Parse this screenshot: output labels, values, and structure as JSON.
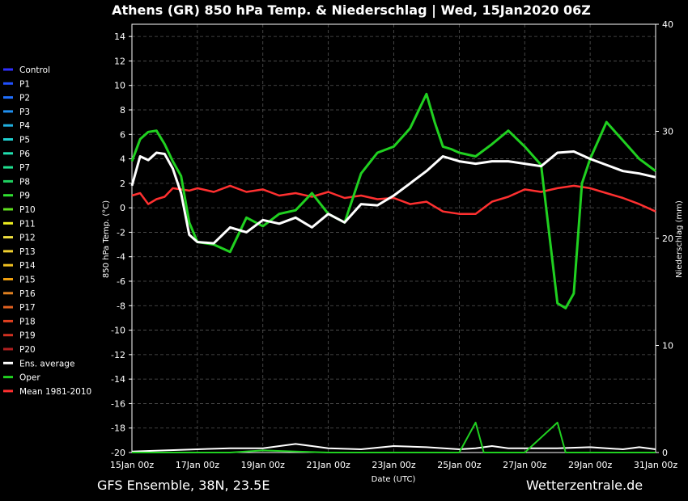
{
  "title": "Athens  (GR)  850 hPa Temp. & Niederschlag | Wed, 15Jan2020 06Z",
  "footer_left": "GFS Ensemble, 38N, 23.5E",
  "footer_right": "Wetterzentrale.de",
  "chart_data": {
    "type": "line",
    "xlabel": "Date (UTC)",
    "ylabel_left": "850 hPa Temp. (°C)",
    "ylabel_right": "Niederschlag (mm)",
    "x_tick_labels": [
      "15Jan 00z",
      "17Jan 00z",
      "19Jan 00z",
      "21Jan 00z",
      "23Jan 00z",
      "25Jan 00z",
      "27Jan 00z",
      "29Jan 00z",
      "31Jan 00z"
    ],
    "x_range_days": [
      0,
      16
    ],
    "ylim_left": [
      -20,
      15
    ],
    "yticks_left": [
      14,
      12,
      10,
      8,
      6,
      4,
      2,
      0,
      -2,
      -4,
      -6,
      -8,
      -10,
      -12,
      -14,
      -16,
      -18,
      -20
    ],
    "ylim_right": [
      0,
      40
    ],
    "yticks_right": [
      0,
      10,
      20,
      30,
      40
    ],
    "grid": true,
    "legend_position": "left",
    "legend": [
      {
        "name": "Control",
        "color": "#3030ff"
      },
      {
        "name": "P1",
        "color": "#2050ff"
      },
      {
        "name": "P2",
        "color": "#2070ff"
      },
      {
        "name": "P3",
        "color": "#2090f0"
      },
      {
        "name": "P4",
        "color": "#20b0e0"
      },
      {
        "name": "P5",
        "color": "#20d0d0"
      },
      {
        "name": "P6",
        "color": "#20e0b0"
      },
      {
        "name": "P7",
        "color": "#20e090"
      },
      {
        "name": "P8",
        "color": "#20d060"
      },
      {
        "name": "P9",
        "color": "#30e030"
      },
      {
        "name": "P10",
        "color": "#60e020"
      },
      {
        "name": "P11",
        "color": "#f0f020"
      },
      {
        "name": "P12",
        "color": "#f0e040"
      },
      {
        "name": "P13",
        "color": "#f0d030"
      },
      {
        "name": "P14",
        "color": "#f0c020"
      },
      {
        "name": "P15",
        "color": "#f0a010"
      },
      {
        "name": "P16",
        "color": "#e08020"
      },
      {
        "name": "P17",
        "color": "#e06020"
      },
      {
        "name": "P18",
        "color": "#e04020"
      },
      {
        "name": "P19",
        "color": "#d03020"
      },
      {
        "name": "P20",
        "color": "#b02020"
      },
      {
        "name": "Ens. average",
        "color": "#ffffff"
      },
      {
        "name": "Oper",
        "color": "#20d020"
      },
      {
        "name": "Mean 1981-2010",
        "color": "#ff3030"
      }
    ],
    "series": [
      {
        "name": "Mean 1981-2010",
        "color": "#ff3030",
        "width": 2.5,
        "x": [
          0,
          0.25,
          0.5,
          0.75,
          1,
          1.25,
          1.5,
          1.75,
          2,
          2.5,
          3,
          3.5,
          4,
          4.5,
          5,
          5.5,
          6,
          6.5,
          7,
          7.5,
          8,
          8.5,
          9,
          9.5,
          10,
          10.5,
          11,
          11.5,
          12,
          12.5,
          13,
          13.5,
          14,
          14.5,
          15,
          15.5,
          16
        ],
        "y": [
          1.0,
          1.2,
          0.3,
          0.7,
          0.9,
          1.6,
          1.5,
          1.4,
          1.6,
          1.3,
          1.8,
          1.3,
          1.5,
          1.0,
          1.2,
          0.9,
          1.3,
          0.8,
          1.0,
          0.7,
          0.8,
          0.3,
          0.5,
          -0.3,
          -0.5,
          -0.5,
          0.5,
          0.9,
          1.5,
          1.3,
          1.6,
          1.8,
          1.6,
          1.2,
          0.8,
          0.3,
          -0.3
        ]
      },
      {
        "name": "Oper",
        "color": "#20d020",
        "width": 3,
        "x": [
          0,
          0.25,
          0.5,
          0.75,
          1,
          1.25,
          1.5,
          1.75,
          2,
          2.5,
          3,
          3.5,
          4,
          4.5,
          5,
          5.5,
          6,
          6.5,
          7,
          7.5,
          8,
          8.5,
          9,
          9.25,
          9.5,
          9.75,
          10,
          10.5,
          11,
          11.5,
          12,
          12.5,
          13,
          13.25,
          13.5,
          13.75,
          14,
          14.5,
          15,
          15.5,
          16
        ],
        "y": [
          3.8,
          5.6,
          6.2,
          6.3,
          5.2,
          3.8,
          2.6,
          -1.2,
          -2.8,
          -3.0,
          -3.6,
          -0.8,
          -1.5,
          -0.5,
          -0.2,
          1.2,
          -0.5,
          -1.2,
          2.8,
          4.5,
          5.0,
          6.5,
          9.3,
          7.0,
          5.0,
          4.8,
          4.5,
          4.2,
          5.2,
          6.3,
          5.0,
          3.5,
          -7.8,
          -8.2,
          -7.0,
          2.0,
          4.0,
          7.0,
          5.5,
          4.0,
          3.0
        ]
      },
      {
        "name": "Ens. average",
        "color": "#ffffff",
        "width": 3,
        "x": [
          0,
          0.25,
          0.5,
          0.75,
          1,
          1.25,
          1.5,
          1.75,
          2,
          2.5,
          3,
          3.5,
          4,
          4.5,
          5,
          5.5,
          6,
          6.5,
          7,
          7.5,
          8,
          8.5,
          9,
          9.5,
          10,
          10.5,
          11,
          11.5,
          12,
          12.5,
          13,
          13.5,
          14,
          14.5,
          15,
          15.5,
          16
        ],
        "y": [
          1.8,
          4.2,
          3.9,
          4.5,
          4.4,
          3.2,
          1.2,
          -2.2,
          -2.8,
          -2.9,
          -1.6,
          -2.0,
          -1.0,
          -1.3,
          -0.8,
          -1.6,
          -0.5,
          -1.2,
          0.3,
          0.2,
          1.0,
          2.0,
          3.0,
          4.2,
          3.8,
          3.6,
          3.8,
          3.8,
          3.6,
          3.4,
          4.5,
          4.6,
          4.0,
          3.5,
          3.0,
          2.8,
          2.5
        ]
      }
    ],
    "precipitation": [
      {
        "name": "Ens. average",
        "color": "#ffffff",
        "x": [
          0,
          1,
          2,
          3,
          4,
          5,
          5.5,
          6,
          7,
          8,
          9,
          10,
          10.5,
          11,
          11.5,
          12,
          13,
          14,
          14.5,
          15,
          15.5,
          16
        ],
        "y": [
          0.1,
          0.2,
          0.3,
          0.4,
          0.4,
          0.8,
          0.6,
          0.4,
          0.3,
          0.6,
          0.5,
          0.3,
          0.4,
          0.6,
          0.4,
          0.4,
          0.4,
          0.5,
          0.4,
          0.3,
          0.5,
          0.3
        ]
      },
      {
        "name": "Oper",
        "color": "#20d020",
        "x": [
          0,
          1,
          2,
          3,
          4,
          5,
          6,
          7,
          8,
          9,
          10,
          10.5,
          10.75,
          11,
          12,
          13,
          13.25,
          13.5,
          14,
          15,
          16
        ],
        "y": [
          0,
          0,
          0,
          0,
          0.2,
          0.1,
          0,
          0,
          0,
          0,
          0,
          2.8,
          0,
          0,
          0,
          2.8,
          0,
          0,
          0,
          0,
          0
        ]
      }
    ]
  }
}
